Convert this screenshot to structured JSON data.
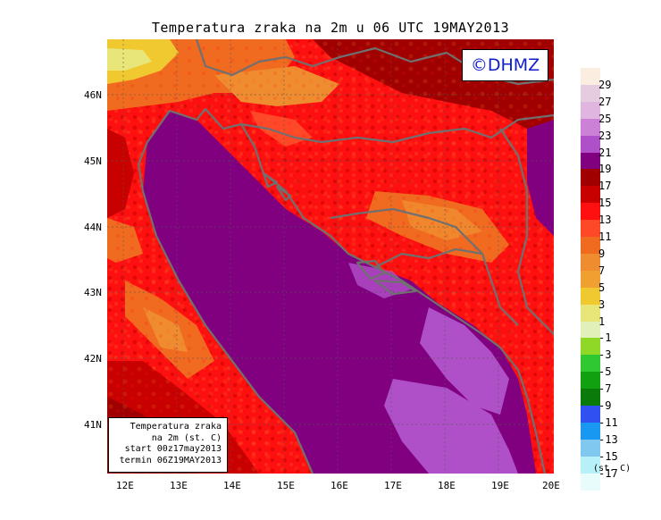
{
  "title": "Temperatura zraka na 2m u 06 UTC 19MAY2013",
  "copyright": "©DHMZ",
  "lat_ticks": [
    "46N",
    "45N",
    "44N",
    "43N",
    "42N",
    "41N"
  ],
  "lon_ticks": [
    "12E",
    "13E",
    "14E",
    "15E",
    "16E",
    "17E",
    "18E",
    "19E",
    "20E"
  ],
  "info_box": {
    "line1": "Temperatura zraka",
    "line2": "na 2m (st. C)",
    "line3": "start 00z17may2013",
    "line4": "termin 06Z19MAY2013"
  },
  "legend": {
    "labels": [
      "29",
      "27",
      "25",
      "23",
      "21",
      "19",
      "17",
      "15",
      "13",
      "11",
      "9",
      "7",
      "5",
      "3",
      "1",
      "-1",
      "-3",
      "-5",
      "-7",
      "-9",
      "-11",
      "-13",
      "-15",
      "-17"
    ],
    "colors": [
      "#fbeee0",
      "#e6ccdf",
      "#e0b6e0",
      "#cc80d8",
      "#b050c8",
      "#800080",
      "#a00000",
      "#c80000",
      "#ff1010",
      "#ff4828",
      "#f06a20",
      "#f08c30",
      "#f0a030",
      "#f0c830",
      "#e8e678",
      "#e0f0b8",
      "#90d828",
      "#30c830",
      "#10a010",
      "#0a7a0a",
      "#3050f0",
      "#1898f0",
      "#80c8f0",
      "#b8f0f8",
      "#e8fcfc"
    ],
    "units": "(st. C)"
  }
}
